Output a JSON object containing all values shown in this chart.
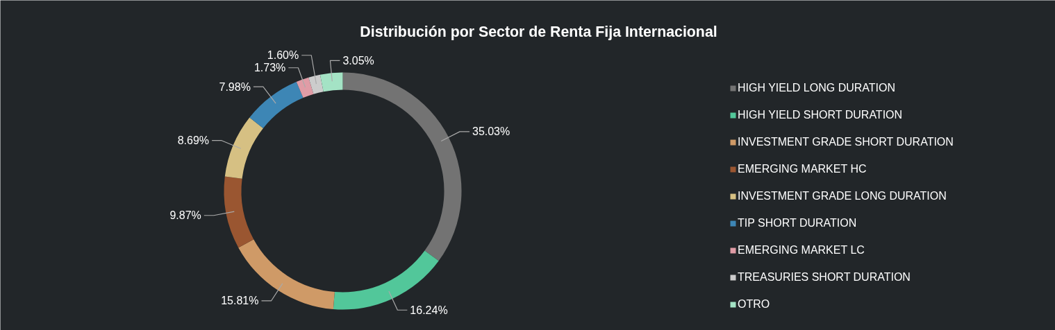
{
  "chart_data": {
    "type": "donut",
    "title": "Distribución por Sector de Renta Fija Internacional",
    "categories": [
      "HIGH YIELD LONG DURATION",
      "HIGH YIELD SHORT DURATION",
      "INVESTMENT GRADE SHORT DURATION",
      "EMERGING MARKET HC",
      "INVESTMENT GRADE LONG DURATION",
      "TIP SHORT DURATION",
      "EMERGING MARKET LC",
      "TREASURIES SHORT DURATION",
      "OTRO"
    ],
    "values": [
      35.03,
      16.24,
      15.81,
      9.87,
      8.69,
      7.98,
      1.73,
      1.6,
      3.05
    ],
    "value_labels": [
      "35.03%",
      "16.24%",
      "15.81%",
      "9.87%",
      "8.69%",
      "7.98%",
      "1.73%",
      "1.60%",
      "3.05%"
    ],
    "colors": [
      "#737373",
      "#52c79a",
      "#cf9a67",
      "#9a5631",
      "#d6c083",
      "#3d86b5",
      "#e09ca6",
      "#cccccc",
      "#a4e3c5"
    ],
    "legend": "right"
  }
}
